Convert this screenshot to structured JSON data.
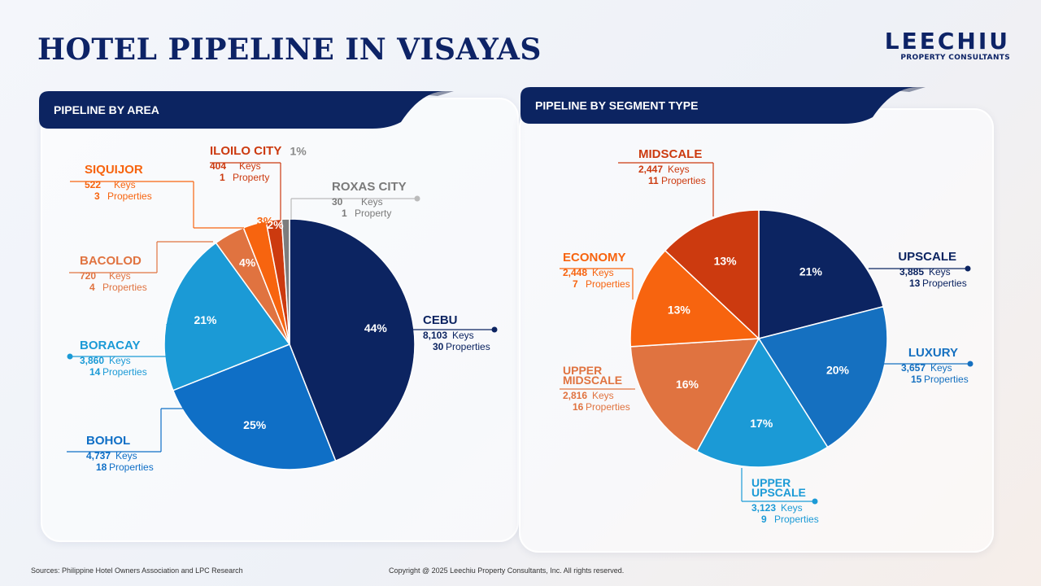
{
  "header": {
    "title": "HOTEL PIPELINE IN VISAYAS"
  },
  "logo": {
    "name": "LEECHIU",
    "tagline": "PROPERTY CONSULTANTS"
  },
  "footer": {
    "sources": "Sources: Philippine Hotel Owners Association and LPC Research",
    "copyright": "Copyright @ 2025 Leechiu Property Consultants, Inc. All rights reserved."
  },
  "chart_data": [
    {
      "type": "pie",
      "title": "PIPELINE BY AREA",
      "slices": [
        {
          "name": "CEBU",
          "percent": 44,
          "pct_label": "44%",
          "keys": "8,103",
          "keys_label": "Keys",
          "props": "30",
          "props_label": "Properties",
          "color": "#0c2461"
        },
        {
          "name": "BOHOL",
          "percent": 25,
          "pct_label": "25%",
          "keys": "4,737",
          "keys_label": "Keys",
          "props": "18",
          "props_label": "Properties",
          "color": "#0f6fc6"
        },
        {
          "name": "BORACAY",
          "percent": 21,
          "pct_label": "21%",
          "keys": "3,860",
          "keys_label": "Keys",
          "props": "14",
          "props_label": "Properties",
          "color": "#1b9ad6"
        },
        {
          "name": "BACOLOD",
          "percent": 4,
          "pct_label": "4%",
          "keys": "720",
          "keys_label": "Keys",
          "props": "4",
          "props_label": "Properties",
          "color": "#e07340"
        },
        {
          "name": "SIQUIJOR",
          "percent": 3,
          "pct_label": "3%",
          "keys": "522",
          "keys_label": "Keys",
          "props": "3",
          "props_label": "Properties",
          "color": "#f7640f"
        },
        {
          "name": "ILOILO CITY",
          "percent": 2,
          "pct_label": "2%",
          "keys": "404",
          "keys_label": "Keys",
          "props": "1",
          "props_label": "Property",
          "color": "#cc3a0f"
        },
        {
          "name": "ROXAS CITY",
          "percent": 1,
          "pct_label": "1%",
          "keys": "30",
          "keys_label": "Keys",
          "props": "1",
          "props_label": "Property",
          "color": "#7d7d7d"
        }
      ]
    },
    {
      "type": "pie",
      "title": "PIPELINE BY SEGMENT TYPE",
      "slices": [
        {
          "name": "UPSCALE",
          "percent": 21,
          "pct_label": "21%",
          "keys": "3,885",
          "keys_label": "Keys",
          "props": "13",
          "props_label": "Properties",
          "color": "#0c2461"
        },
        {
          "name": "LUXURY",
          "percent": 20,
          "pct_label": "20%",
          "keys": "3,657",
          "keys_label": "Keys",
          "props": "15",
          "props_label": "Properties",
          "color": "#1570c0"
        },
        {
          "name": "UPPER UPSCALE",
          "percent": 17,
          "pct_label": "17%",
          "keys": "3,123",
          "keys_label": "Keys",
          "props": "9",
          "props_label": "Properties",
          "color": "#1b9ad6"
        },
        {
          "name": "UPPER MIDSCALE",
          "percent": 16,
          "pct_label": "16%",
          "keys": "2,816",
          "keys_label": "Keys",
          "props": "16",
          "props_label": "Properties",
          "color": "#e07340"
        },
        {
          "name": "ECONOMY",
          "percent": 13,
          "pct_label": "13%",
          "keys": "2,448",
          "keys_label": "Keys",
          "props": "7",
          "props_label": "Properties",
          "color": "#f7640f"
        },
        {
          "name": "MIDSCALE",
          "percent": 13,
          "pct_label": "13%",
          "keys": "2,447",
          "keys_label": "Keys",
          "props": "11",
          "props_label": "Properties",
          "color": "#cc3a0f"
        }
      ]
    }
  ]
}
